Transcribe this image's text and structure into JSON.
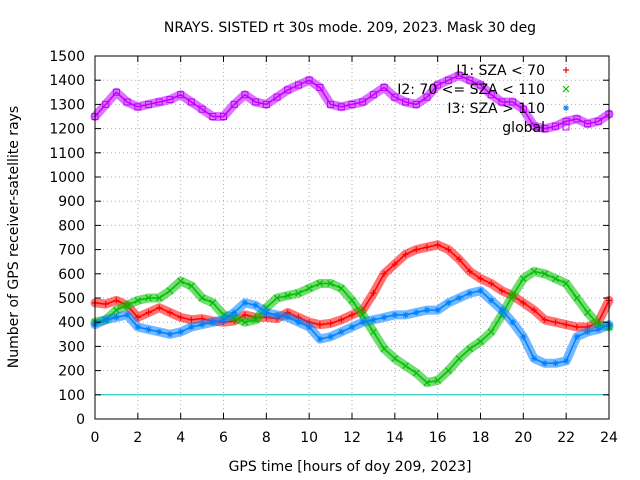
{
  "chart_data": {
    "type": "scatter",
    "title": "NRAYS. SISTED rt 30s mode. 209, 2023. Mask 30 deg",
    "xlabel": "GPS time [hours of doy 209, 2023]",
    "ylabel": "Number of GPS receiver-satellite rays",
    "xlim": [
      0,
      24
    ],
    "ylim": [
      0,
      1500
    ],
    "xticks": [
      0,
      2,
      4,
      6,
      8,
      10,
      12,
      14,
      16,
      18,
      20,
      22,
      24
    ],
    "yticks": [
      0,
      100,
      200,
      300,
      400,
      500,
      600,
      700,
      800,
      900,
      1000,
      1100,
      1200,
      1300,
      1400,
      1500
    ],
    "grid": true,
    "legend_position": "top-right",
    "reference_line": {
      "y": 100,
      "color": "#00c0c0"
    },
    "series": [
      {
        "name": "I1: SZA < 70",
        "color": "#ff0000",
        "marker": "+",
        "x": [
          0,
          0.5,
          1,
          1.5,
          2,
          2.5,
          3,
          3.5,
          4,
          4.5,
          5,
          5.5,
          6,
          6.5,
          7,
          7.5,
          8,
          8.5,
          9,
          9.5,
          10,
          10.5,
          11,
          11.5,
          12,
          12.5,
          13,
          13.5,
          14,
          14.5,
          15,
          15.5,
          16,
          16.5,
          17,
          17.5,
          18,
          18.5,
          19,
          19.5,
          20,
          20.5,
          21,
          21.5,
          22,
          22.5,
          23,
          23.5,
          24
        ],
        "y": [
          480,
          475,
          490,
          470,
          420,
          440,
          460,
          440,
          420,
          410,
          415,
          405,
          400,
          405,
          430,
          420,
          420,
          415,
          440,
          420,
          400,
          390,
          395,
          410,
          430,
          450,
          520,
          600,
          640,
          680,
          700,
          710,
          720,
          700,
          660,
          610,
          580,
          560,
          530,
          510,
          480,
          450,
          410,
          400,
          390,
          380,
          380,
          400,
          490
        ]
      },
      {
        "name": "I2: 70 <= SZA < 110",
        "color": "#00c000",
        "marker": "x",
        "x": [
          0,
          0.5,
          1,
          1.5,
          2,
          2.5,
          3,
          3.5,
          4,
          4.5,
          5,
          5.5,
          6,
          6.5,
          7,
          7.5,
          8,
          8.5,
          9,
          9.5,
          10,
          10.5,
          11,
          11.5,
          12,
          12.5,
          13,
          13.5,
          14,
          14.5,
          15,
          15.5,
          16,
          16.5,
          17,
          17.5,
          18,
          18.5,
          19,
          19.5,
          20,
          20.5,
          21,
          21.5,
          22,
          22.5,
          23,
          23.5,
          24
        ],
        "y": [
          400,
          410,
          450,
          470,
          490,
          500,
          500,
          530,
          570,
          550,
          500,
          480,
          430,
          420,
          400,
          410,
          460,
          500,
          510,
          520,
          540,
          560,
          560,
          540,
          490,
          430,
          360,
          290,
          250,
          220,
          190,
          150,
          160,
          200,
          250,
          290,
          320,
          360,
          430,
          510,
          580,
          610,
          600,
          580,
          560,
          500,
          440,
          390,
          380
        ]
      },
      {
        "name": "I3: SZA > 110",
        "color": "#0080ff",
        "marker": "*",
        "x": [
          0,
          0.5,
          1,
          1.5,
          2,
          2.5,
          3,
          3.5,
          4,
          4.5,
          5,
          5.5,
          6,
          6.5,
          7,
          7.5,
          8,
          8.5,
          9,
          9.5,
          10,
          10.5,
          11,
          11.5,
          12,
          12.5,
          13,
          13.5,
          14,
          14.5,
          15,
          15.5,
          16,
          16.5,
          17,
          17.5,
          18,
          18.5,
          19,
          19.5,
          20,
          20.5,
          21,
          21.5,
          22,
          22.5,
          23,
          23.5,
          24
        ],
        "y": [
          390,
          410,
          420,
          430,
          380,
          370,
          360,
          350,
          360,
          380,
          390,
          400,
          410,
          440,
          480,
          470,
          440,
          430,
          420,
          400,
          380,
          330,
          340,
          360,
          380,
          400,
          410,
          420,
          430,
          430,
          440,
          450,
          450,
          480,
          500,
          520,
          530,
          490,
          450,
          400,
          340,
          250,
          230,
          230,
          240,
          340,
          360,
          370,
          390
        ]
      },
      {
        "name": "global",
        "color": "#c000ff",
        "marker": "square",
        "x": [
          0,
          0.5,
          1,
          1.5,
          2,
          2.5,
          3,
          3.5,
          4,
          4.5,
          5,
          5.5,
          6,
          6.5,
          7,
          7.5,
          8,
          8.5,
          9,
          9.5,
          10,
          10.5,
          11,
          11.5,
          12,
          12.5,
          13,
          13.5,
          14,
          14.5,
          15,
          15.5,
          16,
          16.5,
          17,
          17.5,
          18,
          18.5,
          19,
          19.5,
          20,
          20.5,
          21,
          21.5,
          22,
          22.5,
          23,
          23.5,
          24
        ],
        "y": [
          1250,
          1300,
          1350,
          1310,
          1290,
          1300,
          1310,
          1320,
          1340,
          1310,
          1280,
          1250,
          1250,
          1300,
          1340,
          1310,
          1300,
          1330,
          1360,
          1380,
          1400,
          1370,
          1300,
          1290,
          1300,
          1310,
          1340,
          1370,
          1330,
          1310,
          1300,
          1330,
          1380,
          1400,
          1420,
          1400,
          1380,
          1340,
          1310,
          1310,
          1280,
          1210,
          1200,
          1210,
          1230,
          1240,
          1220,
          1230,
          1260
        ]
      }
    ]
  }
}
